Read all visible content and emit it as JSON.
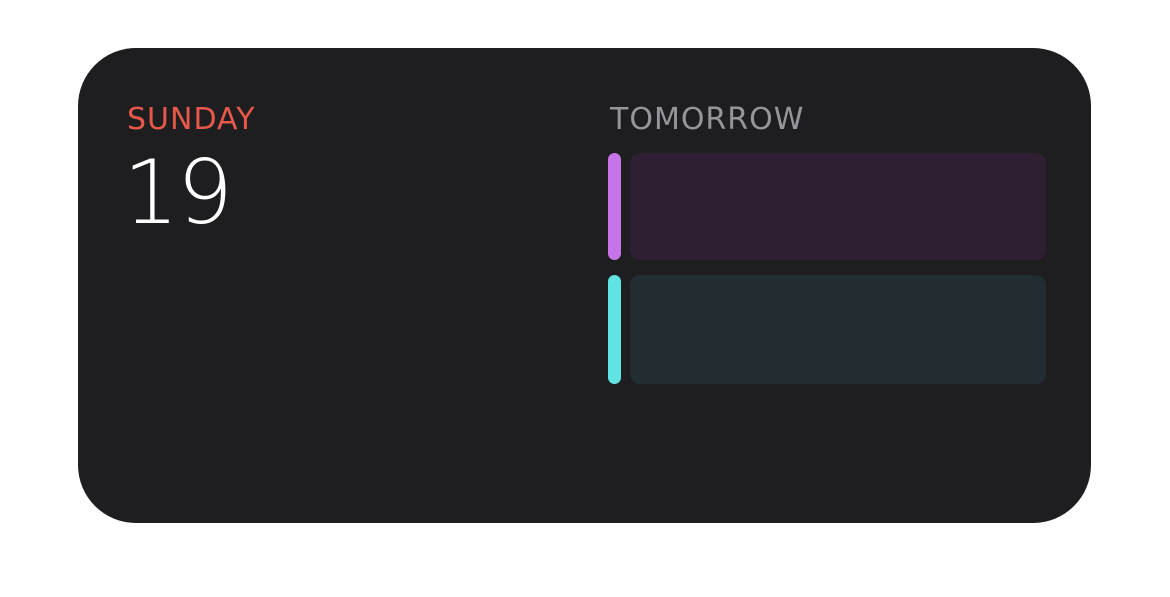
{
  "widget": {
    "day_name": "SUNDAY",
    "day_number": "19",
    "tomorrow_label": "TOMORROW",
    "events": [
      {
        "color_bar": "#c774e8",
        "color_block": "#2e1f33"
      },
      {
        "color_bar": "#5fe3e3",
        "color_block": "#212d30"
      }
    ]
  },
  "colors": {
    "background": "#1e1e20",
    "day_name": "#e8584a",
    "day_number": "#ffffff",
    "tomorrow_label": "#96959b"
  }
}
